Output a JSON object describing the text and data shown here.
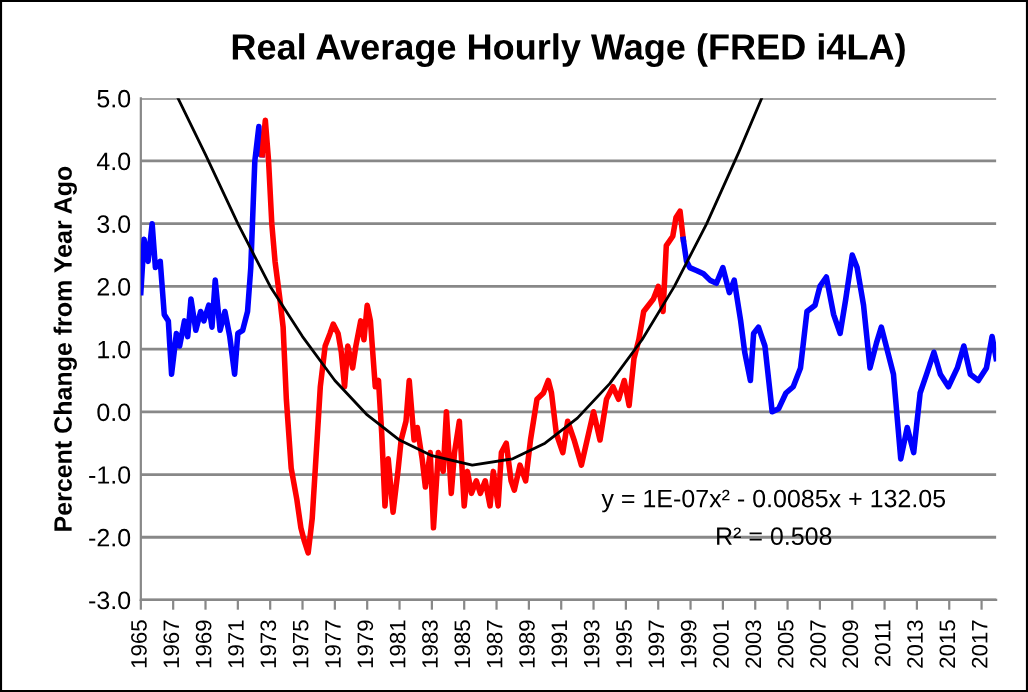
{
  "chart_data": {
    "type": "line",
    "title": "Real Average Hourly Wage (FRED i4LA)",
    "ylabel": "Percent Change from Year Ago",
    "xlim": [
      1965,
      2017.9
    ],
    "xticks": [
      {
        "value": 1965,
        "label": "1965"
      },
      {
        "value": 1967,
        "label": "1967"
      },
      {
        "value": 1969,
        "label": "1969"
      },
      {
        "value": 1971,
        "label": "1971"
      },
      {
        "value": 1973,
        "label": "1973"
      },
      {
        "value": 1975,
        "label": "1975"
      },
      {
        "value": 1977,
        "label": "1977"
      },
      {
        "value": 1979,
        "label": "1979"
      },
      {
        "value": 1981,
        "label": "1981"
      },
      {
        "value": 1983,
        "label": "1983"
      },
      {
        "value": 1985,
        "label": "1985"
      },
      {
        "value": 1987,
        "label": "1987"
      },
      {
        "value": 1989,
        "label": "1989"
      },
      {
        "value": 1991,
        "label": "1991"
      },
      {
        "value": 1993,
        "label": "1993"
      },
      {
        "value": 1995,
        "label": "1995"
      },
      {
        "value": 1997,
        "label": "1997"
      },
      {
        "value": 1999,
        "label": "1999"
      },
      {
        "value": 2001,
        "label": "2001"
      },
      {
        "value": 2003,
        "label": "2003"
      },
      {
        "value": 2005,
        "label": "2005"
      },
      {
        "value": 2007,
        "label": "2007"
      },
      {
        "value": 2009,
        "label": "2009"
      },
      {
        "value": 2011,
        "label": "2011"
      },
      {
        "value": 2013,
        "label": "2013"
      },
      {
        "value": 2015,
        "label": "2015"
      },
      {
        "value": 2017,
        "label": "2017"
      }
    ],
    "ylim": [
      -3,
      5
    ],
    "yticks": [
      {
        "value": -3,
        "label": "-3.0"
      },
      {
        "value": -2,
        "label": "-2.0"
      },
      {
        "value": -1,
        "label": "-1.0"
      },
      {
        "value": 0,
        "label": "0.0"
      },
      {
        "value": 1,
        "label": "1.0"
      },
      {
        "value": 2,
        "label": "2.0"
      },
      {
        "value": 3,
        "label": "3.0"
      },
      {
        "value": 4,
        "label": "4.0"
      },
      {
        "value": 5,
        "label": "5.0"
      }
    ],
    "grid": "y",
    "legend": false,
    "marker": "none",
    "line_style": "solid",
    "series": [
      {
        "color": "#0000ff",
        "x": [
          1965.0,
          1965.2,
          1965.45,
          1965.7,
          1965.9,
          1966.2,
          1966.45,
          1966.7,
          1966.9,
          1967.2,
          1967.4,
          1967.7,
          1967.9,
          1968.1,
          1968.4,
          1968.7,
          1968.9,
          1969.2,
          1969.4,
          1969.6,
          1969.9,
          1970.2,
          1970.5,
          1970.8,
          1971.0,
          1971.3,
          1971.6,
          1971.8,
          1972.05,
          1972.3,
          1972.4,
          1972.5
        ],
        "values": [
          1.9,
          2.75,
          2.4,
          3.0,
          2.3,
          2.4,
          1.55,
          1.45,
          0.6,
          1.25,
          1.05,
          1.45,
          1.2,
          1.8,
          1.3,
          1.6,
          1.45,
          1.7,
          1.35,
          2.1,
          1.3,
          1.6,
          1.2,
          0.6,
          1.25,
          1.3,
          1.6,
          2.3,
          4.0,
          4.55,
          4.1,
          4.1
        ]
      },
      {
        "color": "#ff0000",
        "x": [
          1972.5,
          1972.7,
          1972.9,
          1973.1,
          1973.3,
          1973.6,
          1973.8,
          1974.0,
          1974.3,
          1974.65,
          1974.9,
          1975.1,
          1975.35,
          1975.6,
          1975.9,
          1976.1,
          1976.4,
          1976.7,
          1976.9,
          1977.2,
          1977.4,
          1977.6,
          1977.8,
          1978.1,
          1978.3,
          1978.6,
          1978.8,
          1979.0,
          1979.2,
          1979.5,
          1979.7,
          1979.9,
          1980.1,
          1980.3,
          1980.6,
          1980.9,
          1981.1,
          1981.4,
          1981.6,
          1981.9,
          1982.1,
          1982.4,
          1982.6,
          1982.9,
          1983.1,
          1983.4,
          1983.7,
          1983.9,
          1984.2,
          1984.4,
          1984.7,
          1985.0,
          1985.2,
          1985.45,
          1985.75,
          1986.0,
          1986.3,
          1986.6,
          1986.8,
          1987.1,
          1987.3,
          1987.6,
          1987.9,
          1988.1,
          1988.45,
          1988.8,
          1989.1,
          1989.5,
          1989.9,
          1990.2,
          1990.4,
          1990.7,
          1991.1,
          1991.4,
          1991.8,
          1992.25,
          1992.6,
          1993.0,
          1993.4,
          1993.8,
          1994.2,
          1994.55,
          1994.9,
          1995.2,
          1995.5,
          1995.8,
          1996.1,
          1996.4,
          1996.7,
          1997.0,
          1997.3,
          1997.5,
          1997.9,
          1998.1,
          1998.35,
          1998.55
        ],
        "values": [
          4.1,
          4.65,
          4.0,
          3.0,
          2.4,
          1.8,
          1.35,
          0.2,
          -0.9,
          -1.4,
          -1.85,
          -2.05,
          -2.25,
          -1.7,
          -0.45,
          0.4,
          1.05,
          1.25,
          1.4,
          1.25,
          0.95,
          0.4,
          1.05,
          0.7,
          1.05,
          1.45,
          1.15,
          1.7,
          1.45,
          0.4,
          0.5,
          -0.35,
          -1.5,
          -0.75,
          -1.6,
          -0.95,
          -0.45,
          -0.15,
          0.5,
          -0.45,
          -0.25,
          -0.75,
          -1.2,
          -0.65,
          -1.85,
          -0.65,
          -0.95,
          0.0,
          -1.3,
          -0.65,
          -0.15,
          -1.5,
          -0.95,
          -1.3,
          -1.1,
          -1.3,
          -1.1,
          -1.5,
          -0.95,
          -1.5,
          -0.65,
          -0.5,
          -1.1,
          -1.25,
          -0.85,
          -1.1,
          -0.45,
          0.2,
          0.3,
          0.5,
          0.3,
          -0.35,
          -0.65,
          -0.15,
          -0.45,
          -0.85,
          -0.45,
          0.0,
          -0.45,
          0.2,
          0.4,
          0.2,
          0.5,
          0.1,
          0.85,
          1.15,
          1.6,
          1.7,
          1.8,
          2.0,
          1.6,
          2.65,
          2.8,
          3.1,
          3.2,
          2.75
        ]
      },
      {
        "color": "#0000ff",
        "x": [
          1998.55,
          1998.75,
          1998.95,
          1999.4,
          1999.8,
          2000.2,
          2000.6,
          2001.0,
          2001.4,
          2001.7,
          2002.1,
          2002.35,
          2002.7,
          2002.9,
          2003.2,
          2003.6,
          2004.05,
          2004.45,
          2004.9,
          2005.35,
          2005.8,
          2006.2,
          2006.7,
          2007.0,
          2007.4,
          2007.85,
          2008.25,
          2008.6,
          2009.0,
          2009.3,
          2009.7,
          2010.1,
          2010.5,
          2010.8,
          2011.1,
          2011.55,
          2012.0,
          2012.4,
          2012.8,
          2013.2,
          2013.6,
          2014.05,
          2014.45,
          2014.95,
          2015.5,
          2015.9,
          2016.3,
          2016.8,
          2017.3,
          2017.65,
          2017.9
        ],
        "values": [
          2.75,
          2.4,
          2.3,
          2.25,
          2.2,
          2.1,
          2.05,
          2.3,
          1.9,
          2.1,
          1.45,
          0.95,
          0.5,
          1.25,
          1.35,
          1.05,
          0.0,
          0.05,
          0.3,
          0.4,
          0.7,
          1.6,
          1.7,
          2.0,
          2.15,
          1.55,
          1.25,
          1.8,
          2.5,
          2.3,
          1.7,
          0.7,
          1.1,
          1.35,
          1.05,
          0.6,
          -0.75,
          -0.25,
          -0.65,
          0.3,
          0.6,
          0.95,
          0.6,
          0.4,
          0.7,
          1.05,
          0.6,
          0.5,
          0.7,
          1.2,
          0.85
        ]
      },
      {
        "color": "#000000",
        "type": "line",
        "x": [
          1967.3,
          1969,
          1971,
          1973,
          1975,
          1977,
          1979,
          1981,
          1983,
          1985.5,
          1988,
          1990,
          1992,
          1994,
          1996,
          1998,
          2000,
          2002,
          2003.4
        ],
        "values": [
          5.0,
          4.1,
          3.0,
          2.0,
          1.2,
          0.5,
          -0.05,
          -0.45,
          -0.7,
          -0.85,
          -0.75,
          -0.5,
          -0.1,
          0.45,
          1.15,
          2.0,
          3.0,
          4.15,
          5.0
        ]
      }
    ],
    "annotations": [
      "y = 1E-07x² - 0.0085x + 132.05",
      "R² = 0.508"
    ]
  }
}
